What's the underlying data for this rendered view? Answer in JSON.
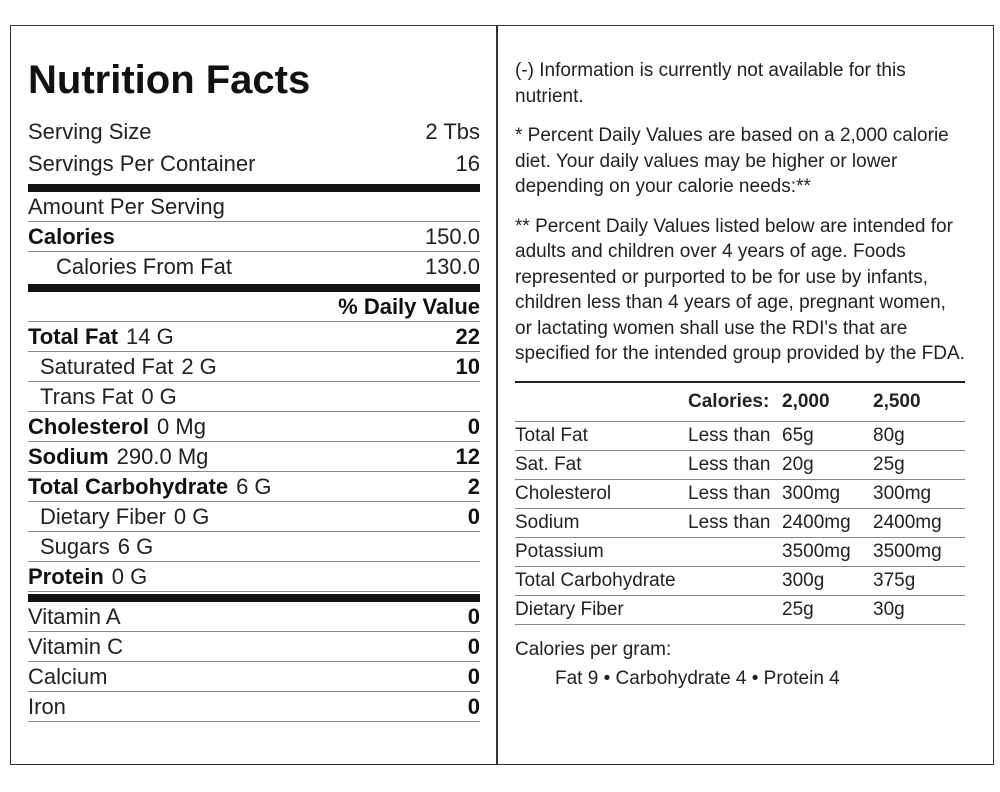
{
  "left": {
    "title": "Nutrition Facts",
    "serving": [
      {
        "name": "Serving Size",
        "value": "2 Tbs"
      },
      {
        "name": "Servings Per Container",
        "value": "16"
      }
    ],
    "amount_per_serving": "Amount Per Serving",
    "calories": {
      "name": "Calories",
      "value": "150.0"
    },
    "calories_from_fat": {
      "name": "Calories From Fat",
      "value": "130.0"
    },
    "daily_value_header": "% Daily Value",
    "nutrients": [
      {
        "name": "Total Fat",
        "amount": "14 G",
        "dv": "22",
        "sub": [
          {
            "name": "Saturated Fat",
            "amount": "2 G",
            "dv": "10"
          },
          {
            "name": "Trans Fat",
            "amount": "0 G"
          }
        ]
      },
      {
        "name": "Cholesterol",
        "amount": "0 Mg",
        "dv": "0"
      },
      {
        "name": "Sodium",
        "amount": "290.0 Mg",
        "dv": "12"
      },
      {
        "name": "Total Carbohydrate",
        "amount": "6 G",
        "dv": "2",
        "sub": [
          {
            "name": "Dietary Fiber",
            "amount": "0 G",
            "dv": "0"
          },
          {
            "name": "Sugars",
            "amount": "6 G"
          }
        ]
      },
      {
        "name": "Protein",
        "amount": "0 G"
      }
    ],
    "vitamins": [
      {
        "name": "Vitamin A",
        "dv": "0"
      },
      {
        "name": "Vitamin C",
        "dv": "0"
      },
      {
        "name": "Calcium",
        "dv": "0"
      },
      {
        "name": "Iron",
        "dv": "0"
      }
    ]
  },
  "right": {
    "notes": [
      "(-) Information is currently not available for this nutrient.",
      "* Percent Daily Values are based on a 2,000 calorie diet. Your daily values may be higher or lower depending on your calorie needs:**",
      "** Percent Daily Values listed below are intended for adults and children over 4 years of age. Foods represented or purported to be for use by infants, children less than 4 years of age, pregnant women, or lactating women shall use the RDI's that are specified for the intended group provided by the FDA."
    ],
    "table": {
      "header": [
        "Calories:",
        "2,000",
        "2,500"
      ],
      "rows": [
        {
          "name": "Total Fat",
          "limit": "Less than",
          "v1": "65g",
          "v2": "80g"
        },
        {
          "name": "Sat. Fat",
          "limit": "Less than",
          "v1": "20g",
          "v2": "25g"
        },
        {
          "name": "Cholesterol",
          "limit": "Less than",
          "v1": "300mg",
          "v2": "300mg"
        },
        {
          "name": "Sodium",
          "limit": "Less than",
          "v1": "2400mg",
          "v2": "2400mg"
        },
        {
          "name": "Potassium",
          "v1": "3500mg",
          "v2": "3500mg"
        },
        {
          "name": "Total Carbohydrate",
          "v1": "300g",
          "v2": "375g"
        },
        {
          "name": "Dietary Fiber",
          "v1": "25g",
          "v2": "30g"
        }
      ]
    },
    "calories_per_gram": "Calories per gram:",
    "calories_per_gram_detail": "Fat 9 • Carbohydrate 4 • Protein 4"
  }
}
